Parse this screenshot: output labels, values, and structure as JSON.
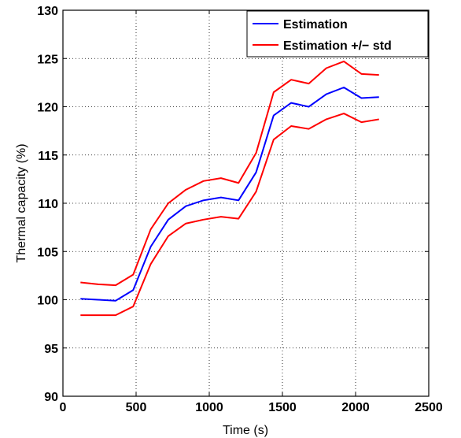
{
  "chart_data": {
    "type": "line",
    "title": "",
    "xlabel": "Time (s)",
    "ylabel": "Thermal capacity (%)",
    "xlim": [
      0,
      2500
    ],
    "ylim": [
      90,
      130
    ],
    "xticks": [
      0,
      500,
      1000,
      1500,
      2000,
      2500
    ],
    "yticks": [
      90,
      95,
      100,
      105,
      110,
      115,
      120,
      125,
      130
    ],
    "grid": true,
    "grid_style": "dotted",
    "legend_position": "top-right",
    "x": [
      120,
      240,
      360,
      480,
      600,
      720,
      840,
      960,
      1080,
      1200,
      1320,
      1440,
      1560,
      1680,
      1800,
      1920,
      2040,
      2160
    ],
    "series": [
      {
        "name": "Estimation",
        "color": "#0000ff",
        "values": [
          100.1,
          100.0,
          99.9,
          101.0,
          105.5,
          108.3,
          109.7,
          110.3,
          110.6,
          110.3,
          113.2,
          119.1,
          120.4,
          120.0,
          121.3,
          122.0,
          120.9,
          121.0
        ]
      },
      {
        "name": "Estimation +/− std",
        "color": "#ff0000",
        "values": [
          101.8,
          101.6,
          101.5,
          102.6,
          107.3,
          110.0,
          111.4,
          112.3,
          112.6,
          112.1,
          115.2,
          121.5,
          122.8,
          122.4,
          124.0,
          124.7,
          123.4,
          123.3
        ]
      },
      {
        "name": "",
        "color": "#ff0000",
        "values": [
          98.4,
          98.4,
          98.4,
          99.3,
          103.7,
          106.6,
          107.9,
          108.3,
          108.6,
          108.4,
          111.2,
          116.6,
          118.0,
          117.7,
          118.7,
          119.3,
          118.4,
          118.7
        ]
      }
    ]
  }
}
